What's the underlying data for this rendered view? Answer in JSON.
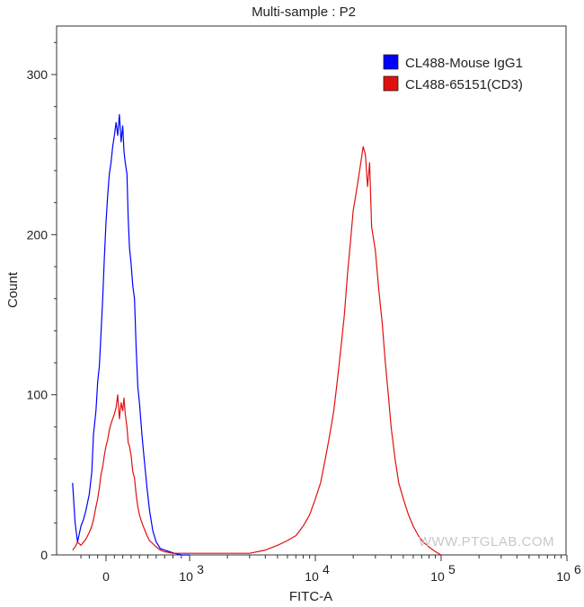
{
  "chart_data": {
    "type": "line",
    "title": "Multi-sample : P2",
    "xlabel": "FITC-A",
    "ylabel": "Count",
    "x_scale": "biexponential",
    "xlim": [
      -400,
      1000000
    ],
    "ylim": [
      0,
      330
    ],
    "grid": false,
    "legend_placement": "top-right",
    "x_ticks": [
      {
        "value": 0,
        "label": "0",
        "exp": ""
      },
      {
        "value": 1000,
        "label": "10",
        "exp": "3"
      },
      {
        "value": 10000,
        "label": "10",
        "exp": "4"
      },
      {
        "value": 100000,
        "label": "10",
        "exp": "5"
      },
      {
        "value": 1000000,
        "label": "10",
        "exp": "6"
      }
    ],
    "y_ticks": [
      {
        "value": 0,
        "label": "0"
      },
      {
        "value": 100,
        "label": "100"
      },
      {
        "value": 200,
        "label": "200"
      },
      {
        "value": 300,
        "label": "300"
      }
    ],
    "series": [
      {
        "name": "CL488-Mouse IgG1",
        "color": "#0000ff",
        "x": [
          -400,
          -370,
          -340,
          -300,
          -270,
          -240,
          -200,
          -170,
          -150,
          -120,
          -100,
          -80,
          -60,
          -40,
          -20,
          0,
          20,
          40,
          60,
          80,
          100,
          120,
          140,
          160,
          180,
          200,
          215,
          230,
          250,
          265,
          280,
          300,
          320,
          340,
          360,
          380,
          400,
          430,
          460,
          490,
          520,
          560,
          600,
          650,
          700,
          760,
          820,
          900,
          1000
        ],
        "y": [
          45,
          20,
          8,
          18,
          22,
          28,
          38,
          52,
          75,
          90,
          108,
          118,
          138,
          160,
          185,
          208,
          225,
          238,
          245,
          255,
          262,
          270,
          262,
          275,
          258,
          268,
          252,
          245,
          238,
          210,
          192,
          182,
          168,
          160,
          130,
          105,
          95,
          75,
          58,
          42,
          28,
          15,
          8,
          4,
          3,
          2,
          1,
          0,
          0
        ]
      },
      {
        "name": "CL488-65151(CD3)",
        "color": "#e01010",
        "x": [
          -400,
          -370,
          -340,
          -300,
          -270,
          -240,
          -200,
          -170,
          -150,
          -120,
          -100,
          -80,
          -60,
          -40,
          -20,
          0,
          20,
          40,
          60,
          80,
          100,
          120,
          140,
          160,
          180,
          200,
          215,
          230,
          250,
          265,
          280,
          300,
          320,
          340,
          360,
          380,
          400,
          430,
          460,
          490,
          520,
          560,
          600,
          650,
          700,
          800,
          1000,
          1300,
          1700,
          2200,
          3000,
          4000,
          5000,
          6000,
          7000,
          8000,
          9000,
          10000,
          11000,
          12000,
          13000,
          14000,
          15000,
          16000,
          17000,
          18000,
          19000,
          20000,
          21000,
          22000,
          23000,
          24000,
          25000,
          26000,
          27000,
          28000,
          30000,
          32000,
          34000,
          36000,
          38000,
          40000,
          43000,
          46000,
          50000,
          55000,
          60000,
          66000,
          72000,
          80000,
          90000,
          100000
        ],
        "y": [
          3,
          5,
          8,
          6,
          8,
          10,
          14,
          18,
          22,
          30,
          35,
          42,
          50,
          55,
          62,
          68,
          72,
          78,
          82,
          85,
          88,
          92,
          100,
          85,
          95,
          90,
          98,
          88,
          80,
          70,
          68,
          62,
          52,
          48,
          38,
          30,
          25,
          20,
          16,
          12,
          9,
          7,
          5,
          3,
          2,
          1,
          1,
          1,
          1,
          1,
          1,
          3,
          6,
          9,
          12,
          18,
          25,
          35,
          45,
          60,
          75,
          90,
          110,
          130,
          150,
          175,
          195,
          215,
          225,
          235,
          245,
          255,
          250,
          230,
          245,
          205,
          190,
          165,
          145,
          120,
          100,
          80,
          60,
          45,
          35,
          25,
          18,
          12,
          8,
          5,
          2,
          0
        ]
      }
    ]
  },
  "watermark": "WWW.PTGLAB.COM"
}
